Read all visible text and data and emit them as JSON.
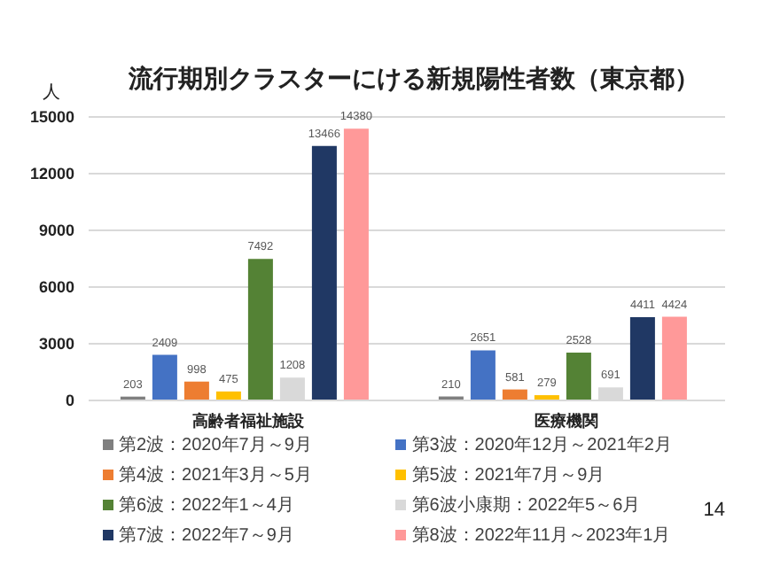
{
  "chart_data": {
    "type": "bar",
    "title": "流行期別クラスターにける新規陽性者数（東京都）",
    "ylabel": "人",
    "categories": [
      "高齢者福祉施設",
      "医療機関"
    ],
    "series": [
      {
        "name": "第2波：2020年7月～9月",
        "color": "#7f7f7f",
        "values": [
          203,
          210
        ]
      },
      {
        "name": "第3波：2020年12月～2021年2月",
        "color": "#4472c4",
        "values": [
          2409,
          2651
        ]
      },
      {
        "name": "第4波：2021年3月～5月",
        "color": "#ed7d31",
        "values": [
          998,
          581
        ]
      },
      {
        "name": "第5波：2021年7月～9月",
        "color": "#ffc000",
        "values": [
          475,
          279
        ]
      },
      {
        "name": "第6波：2022年1～4月",
        "color": "#548235",
        "values": [
          7492,
          2528
        ]
      },
      {
        "name": "第6波小康期：2022年5～6月",
        "color": "#d9d9d9",
        "values": [
          1208,
          691
        ]
      },
      {
        "name": "第7波：2022年7～9月",
        "color": "#203864",
        "values": [
          13466,
          4411
        ]
      },
      {
        "name": "第8波：2022年11月～2023年1月",
        "color": "#ff9999",
        "values": [
          14380,
          4424
        ]
      }
    ],
    "ylim": [
      0,
      15000
    ],
    "yticks": [
      0,
      3000,
      6000,
      9000,
      12000,
      15000
    ],
    "grid": "y",
    "legend": "bottom",
    "data_labels": true,
    "annotations": [
      "14"
    ]
  }
}
